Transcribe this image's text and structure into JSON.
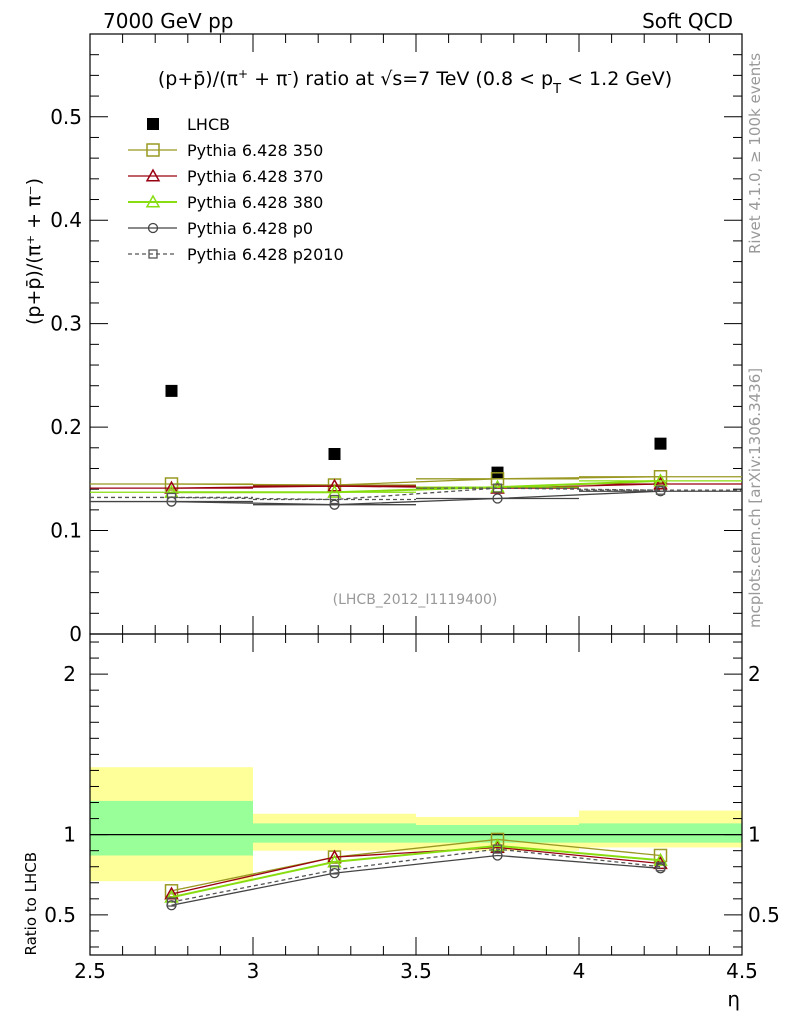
{
  "header": {
    "left": "7000 GeV pp",
    "right": "Soft QCD"
  },
  "side_labels": {
    "rivet": "Rivet 4.1.0, ≥ 100k events",
    "mcplots": "mcplots.cern.ch [arXiv:1306.3436]"
  },
  "chart_data": [
    {
      "type": "scatter",
      "panel": "main",
      "title": "(p+p̄)/(π⁺ + π⁻) ratio at √s=7 TeV (0.8 < p_T < 1.2 GeV)",
      "title_parts": {
        "pre": "(p+p̄)/(π",
        "p1": "+",
        "mid": " + π",
        "p2": "-",
        "post1": ") ratio at √s=7 TeV (0.8 < p",
        "sub": "T",
        "post2": " < 1.2 GeV)"
      },
      "ylabel": "(p+p̄)/(π⁺ + π⁻)",
      "watermark": "(LHCB_2012_I1119400)",
      "xlim": [
        2.5,
        4.5
      ],
      "ylim": [
        0,
        0.58
      ],
      "yticks": [
        {
          "v": 0,
          "label": "0"
        },
        {
          "v": 0.1,
          "label": "0.1"
        },
        {
          "v": 0.2,
          "label": "0.2"
        },
        {
          "v": 0.3,
          "label": "0.3"
        },
        {
          "v": 0.4,
          "label": "0.4"
        },
        {
          "v": 0.5,
          "label": "0.5"
        }
      ],
      "x": [
        2.75,
        3.25,
        3.75,
        4.25
      ],
      "series": [
        {
          "name": "LHCB",
          "key": "lhcb",
          "color": "#000000",
          "marker": "filled-square",
          "line": "none",
          "values": [
            0.235,
            0.174,
            0.156,
            0.184
          ]
        },
        {
          "name": "Pythia 6.428 350",
          "key": "p350",
          "color": "#999922",
          "marker": "open-square",
          "line": "solid",
          "values": [
            0.145,
            0.144,
            0.15,
            0.152
          ]
        },
        {
          "name": "Pythia 6.428 370",
          "key": "p370",
          "color": "#990011",
          "marker": "open-triangle",
          "line": "solid",
          "values": [
            0.141,
            0.143,
            0.141,
            0.145
          ]
        },
        {
          "name": "Pythia 6.428 380",
          "key": "p380",
          "color": "#88dd11",
          "marker": "open-triangle",
          "line": "solid",
          "values": [
            0.137,
            0.137,
            0.142,
            0.148
          ]
        },
        {
          "name": "Pythia 6.428 p0",
          "key": "pp0",
          "color": "#444444",
          "marker": "open-circle",
          "line": "solid",
          "values": [
            0.128,
            0.125,
            0.131,
            0.138
          ]
        },
        {
          "name": "Pythia 6.428 p2010",
          "key": "p2010",
          "color": "#555555",
          "marker": "open-square-small",
          "line": "dashed",
          "values": [
            0.132,
            0.13,
            0.141,
            0.139
          ]
        }
      ]
    },
    {
      "type": "line",
      "panel": "ratio",
      "ylabel": "Ratio to LHCB",
      "xlabel": "η",
      "xlim": [
        2.5,
        4.5
      ],
      "ylim": [
        0.25,
        2.25
      ],
      "xticks": [
        {
          "v": 2.5,
          "label": "2.5"
        },
        {
          "v": 3,
          "label": "3"
        },
        {
          "v": 3.5,
          "label": "3.5"
        },
        {
          "v": 4,
          "label": "4"
        },
        {
          "v": 4.5,
          "label": "4.5"
        }
      ],
      "yticks": [
        {
          "v": 0.5,
          "label": "0.5"
        },
        {
          "v": 1,
          "label": "1"
        },
        {
          "v": 2,
          "label": "2"
        }
      ],
      "bins": [
        {
          "x_low": 2.5,
          "x_high": 3.0,
          "inner": [
            0.87,
            1.21
          ],
          "outer": [
            0.71,
            1.42
          ]
        },
        {
          "x_low": 3.0,
          "x_high": 3.5,
          "inner": [
            0.95,
            1.07
          ],
          "outer": [
            0.9,
            1.13
          ]
        },
        {
          "x_low": 3.5,
          "x_high": 4.0,
          "inner": [
            0.95,
            1.06
          ],
          "outer": [
            0.9,
            1.11
          ]
        },
        {
          "x_low": 4.0,
          "x_high": 4.5,
          "inner": [
            0.95,
            1.07
          ],
          "outer": [
            0.92,
            1.15
          ]
        }
      ],
      "colors": {
        "inner": "#99ff99",
        "outer": "#ffff99"
      },
      "x": [
        2.75,
        3.25,
        3.75,
        4.25
      ],
      "series": [
        {
          "name": "Pythia 6.428 350",
          "key": "p350",
          "values": [
            0.65,
            0.86,
            0.97,
            0.87
          ]
        },
        {
          "name": "Pythia 6.428 370",
          "key": "p370",
          "values": [
            0.63,
            0.86,
            0.92,
            0.82
          ]
        },
        {
          "name": "Pythia 6.428 380",
          "key": "p380",
          "values": [
            0.61,
            0.83,
            0.93,
            0.84
          ]
        },
        {
          "name": "Pythia 6.428 p0",
          "key": "pp0",
          "values": [
            0.56,
            0.76,
            0.87,
            0.79
          ]
        },
        {
          "name": "Pythia 6.428 p2010",
          "key": "p2010",
          "values": [
            0.58,
            0.78,
            0.91,
            0.8
          ]
        }
      ]
    }
  ]
}
